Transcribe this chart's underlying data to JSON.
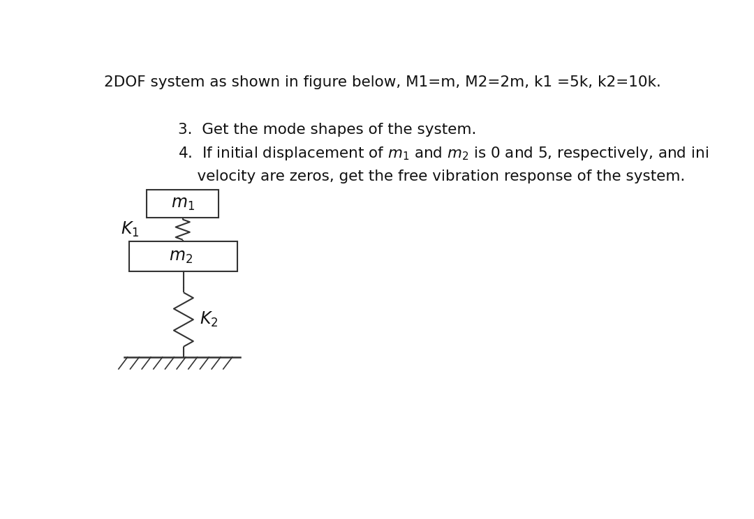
{
  "title_line": "2DOF system as shown in figure below, M1=m, M2=2m, k1 =5k, k2=10k.",
  "item3": "3.  Get the mode shapes of the system.",
  "item4_line1": "4.  If initial displacement of $m_1$ and $m_2$ is 0 and 5, respectively, and ini",
  "item4_line2": "    velocity are zeros, get the free vibration response of the system.",
  "bg_color": "#ffffff",
  "text_color": "#111111",
  "box_color": "#333333",
  "spring_color": "#333333",
  "ground_color": "#333333",
  "font_size_title": 15.5,
  "font_size_items": 15.5,
  "font_size_diagram": 17
}
